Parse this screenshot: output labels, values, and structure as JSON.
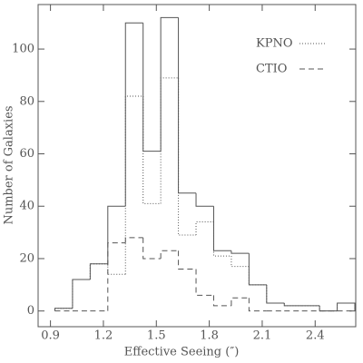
{
  "chart_data": {
    "type": "histogram",
    "xlabel": "Effective Seeing (″)",
    "ylabel": "Number of Galaxies",
    "bins": [
      0.925,
      1.025,
      1.125,
      1.225,
      1.325,
      1.425,
      1.525,
      1.625,
      1.725,
      1.825,
      1.925,
      2.025,
      2.125,
      2.225,
      2.325,
      2.425,
      2.525,
      2.625
    ],
    "series": [
      {
        "color": "#555555",
        "linestyle": "solid",
        "values": [
          1,
          12,
          18,
          40,
          110,
          61,
          112,
          45,
          40,
          23,
          22,
          10,
          3,
          2,
          2,
          0,
          3
        ]
      },
      {
        "name": "KPNO",
        "color": "#555555",
        "linestyle": "dotted",
        "values": [
          1,
          12,
          18,
          14,
          82,
          41,
          89,
          29,
          34,
          21,
          17,
          10,
          3,
          2,
          2,
          0,
          3
        ]
      },
      {
        "name": "CTIO",
        "color": "#555555",
        "linestyle": "dashed",
        "values": [
          0,
          0,
          0,
          26,
          28,
          20,
          23,
          16,
          6,
          2,
          5,
          0,
          0,
          0,
          0,
          0,
          0
        ]
      }
    ],
    "xlim": [
      0.83,
      2.63
    ],
    "ylim": [
      -6,
      117
    ],
    "xticks": [
      0.9,
      1.2,
      1.5,
      1.8,
      2.1,
      2.4
    ],
    "yticks": [
      0,
      20,
      40,
      60,
      80,
      100
    ],
    "legend": "upper right"
  }
}
